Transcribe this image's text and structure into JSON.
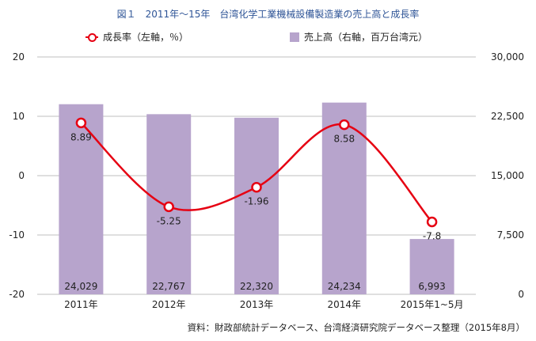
{
  "title": "図１　2011年～15年　台湾化学工業機械設備製造業の売上高と成長率",
  "legend": {
    "line_label": "成長率（左軸，％）",
    "bar_label": "売上高（右軸，百万台湾元）"
  },
  "source": "資料：財政部統計データベース、台湾経済研究院データベース整理（2015年8月）",
  "colors": {
    "bar": "#b7a4cc",
    "line": "#e60012",
    "title": "#2f5597"
  },
  "chart_data": {
    "type": "bar+line",
    "categories": [
      "2011年",
      "2012年",
      "2013年",
      "2014年",
      "2015年1~5月"
    ],
    "series": [
      {
        "name": "売上高（右軸，百万台湾元）",
        "type": "bar",
        "axis": "right",
        "values": [
          24029,
          22767,
          22320,
          24234,
          6993
        ],
        "labels": [
          "24,029",
          "22,767",
          "22,320",
          "24,234",
          "6,993"
        ]
      },
      {
        "name": "成長率（左軸，％）",
        "type": "line",
        "axis": "left",
        "smooth": true,
        "values": [
          8.89,
          -5.25,
          -1.96,
          8.58,
          -7.8
        ],
        "labels": [
          "8.89",
          "-5.25",
          "-1.96",
          "8.58",
          "-7.8"
        ]
      }
    ],
    "left_axis": {
      "ylim": [
        -20,
        20
      ],
      "ticks": [
        "20",
        "10",
        "0",
        "-10",
        "-20"
      ],
      "tick_values": [
        20,
        10,
        0,
        -10,
        -20
      ]
    },
    "right_axis": {
      "ylim": [
        0,
        30000
      ],
      "ticks": [
        "30,000",
        "22,500",
        "15,000",
        "7,500",
        "0"
      ],
      "tick_values": [
        30000,
        22500,
        15000,
        7500,
        0
      ]
    },
    "grid": true,
    "legend_position": "top"
  }
}
